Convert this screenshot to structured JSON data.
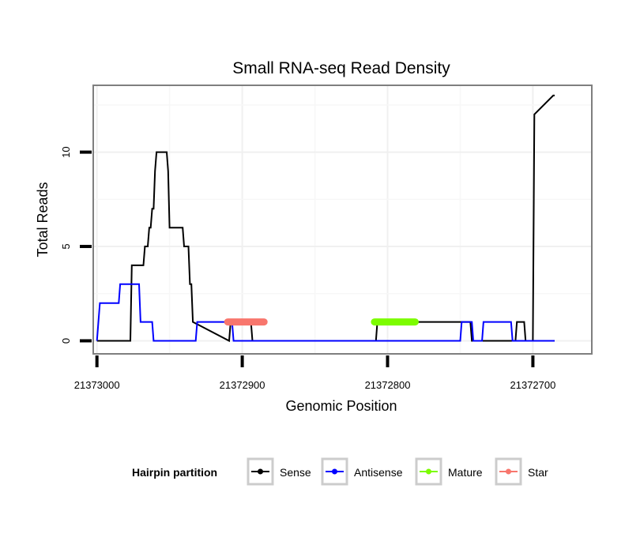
{
  "chart_data": {
    "type": "line",
    "title": "Small RNA-seq Read Density",
    "xlabel": "Genomic Position",
    "ylabel": "Total Reads",
    "x_reversed": true,
    "xlim": [
      21373002,
      21372660
    ],
    "ylim": [
      -0.65,
      13.5
    ],
    "x_ticks": [
      21373000,
      21372900,
      21372800,
      21372700
    ],
    "x_tick_labels": [
      "21373000",
      "21372900",
      "21372800",
      "21372700"
    ],
    "y_ticks": [
      0,
      5,
      10
    ],
    "y_tick_labels": [
      "0",
      "5",
      "10"
    ],
    "grid": true,
    "legend": {
      "title": "Hairpin partition",
      "position": "bottom",
      "entries": [
        {
          "name": "Sense",
          "color": "#000000"
        },
        {
          "name": "Antisense",
          "color": "#0000ff"
        },
        {
          "name": "Mature",
          "color": "#7cfc00"
        },
        {
          "name": "Star",
          "color": "#f8766d"
        }
      ]
    },
    "series": [
      {
        "name": "Sense",
        "color": "#000000",
        "style": "line",
        "x": [
          21373000,
          21372977,
          21372976,
          21372968,
          21372967,
          21372965,
          21372964,
          21372963,
          21372962,
          21372961,
          21372960,
          21372959,
          21372958,
          21372957,
          21372956,
          21372952,
          21372951,
          21372950,
          21372946,
          21372945,
          21372941,
          21372940,
          21372939,
          21372938,
          21372937,
          21372936,
          21372935,
          21372934,
          21372909,
          21372908,
          21372894,
          21372893,
          21372808,
          21372807,
          21372743,
          21372742,
          21372712,
          21372711,
          21372706,
          21372705,
          21372704,
          21372703,
          21372701,
          21372700,
          21372699,
          21372686,
          21372685
        ],
        "y": [
          0,
          0,
          4,
          4,
          5,
          5,
          6,
          6,
          7,
          7,
          9,
          10,
          10,
          10,
          10,
          10,
          9,
          6,
          6,
          6,
          6,
          5,
          5,
          5,
          5,
          3,
          3,
          1,
          0,
          1,
          1,
          0,
          0,
          1,
          1,
          0,
          0,
          1,
          1,
          0,
          0,
          0,
          0,
          0,
          12,
          13,
          13
        ]
      },
      {
        "name": "Antisense",
        "color": "#0000ff",
        "style": "line",
        "x": [
          21373000,
          21372998,
          21372991,
          21372990,
          21372985,
          21372984,
          21372971,
          21372970,
          21372962,
          21372961,
          21372932,
          21372931,
          21372922,
          21372921,
          21372907,
          21372906,
          21372810,
          21372809,
          21372750,
          21372749,
          21372742,
          21372741,
          21372735,
          21372734,
          21372715,
          21372714,
          21372685
        ],
        "y": [
          0,
          2,
          2,
          2,
          2,
          3,
          3,
          1,
          1,
          0,
          0,
          1,
          1,
          1,
          1,
          0,
          0,
          0,
          0,
          1,
          1,
          0,
          0,
          1,
          1,
          0,
          0
        ]
      },
      {
        "name": "Mature",
        "color": "#7cfc00",
        "style": "points",
        "x_range": [
          21372809,
          21372781
        ],
        "y": 1
      },
      {
        "name": "Star",
        "color": "#f8766d",
        "style": "points",
        "x_range": [
          21372910,
          21372885
        ],
        "y": 1
      }
    ]
  }
}
